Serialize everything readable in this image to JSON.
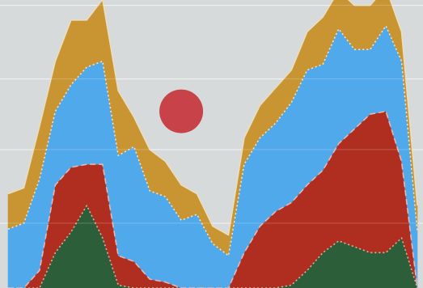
{
  "chart_data": {
    "type": "area",
    "stacked": true,
    "grid": true,
    "background_color": "#d7dadb",
    "x": [
      0,
      1,
      2,
      3,
      4,
      5,
      6,
      7,
      8,
      9,
      10,
      11,
      12,
      13,
      14,
      15,
      16,
      17,
      18,
      19,
      20,
      21,
      22,
      23,
      24,
      25,
      26
    ],
    "xlim": [
      0,
      26
    ],
    "ylim": [
      0,
      100
    ],
    "yticks": [
      22,
      47,
      71,
      96
    ],
    "series": [
      {
        "color": "#2c5e3a",
        "line_color": "#a9c5ad",
        "line_style": "dotted",
        "values": [
          0,
          0,
          0,
          12,
          19,
          28,
          17,
          1,
          0,
          0,
          0,
          0,
          0,
          0,
          0,
          0,
          0,
          0,
          1,
          6,
          12,
          16,
          14,
          12,
          12,
          17,
          0
        ]
      },
      {
        "color": "#b02e1f",
        "line_color": "#e9b6ad",
        "line_style": "dashed",
        "values": [
          0,
          0,
          6,
          23,
          22,
          14,
          25,
          10,
          9,
          3,
          2,
          0,
          0,
          0,
          0,
          12,
          21,
          26,
          28,
          29,
          28,
          33,
          40,
          47,
          48,
          26,
          0
        ]
      },
      {
        "color": "#4fa9eb",
        "line_color": "#dbe7f2",
        "line_style": "dotted",
        "values": [
          20,
          22,
          31,
          25,
          28,
          33,
          35,
          34,
          39,
          30,
          29,
          23,
          25,
          15,
          11,
          30,
          30,
          30,
          34,
          39,
          36,
          39,
          27,
          22,
          29,
          34,
          19
        ]
      },
      {
        "color": "#c99532",
        "line_color": "#eaddc0",
        "line_style": "solid",
        "values": [
          12,
          12,
          18,
          17,
          22,
          16,
          21,
          22,
          10,
          14,
          12,
          12,
          7,
          6,
          7,
          9,
          11,
          12,
          11,
          13,
          16,
          13,
          15,
          15,
          13,
          10,
          9
        ]
      }
    ],
    "annotations": [
      {
        "type": "marker",
        "shape": "circle",
        "color": "#c8424a",
        "x": 11,
        "y": 60
      }
    ]
  }
}
